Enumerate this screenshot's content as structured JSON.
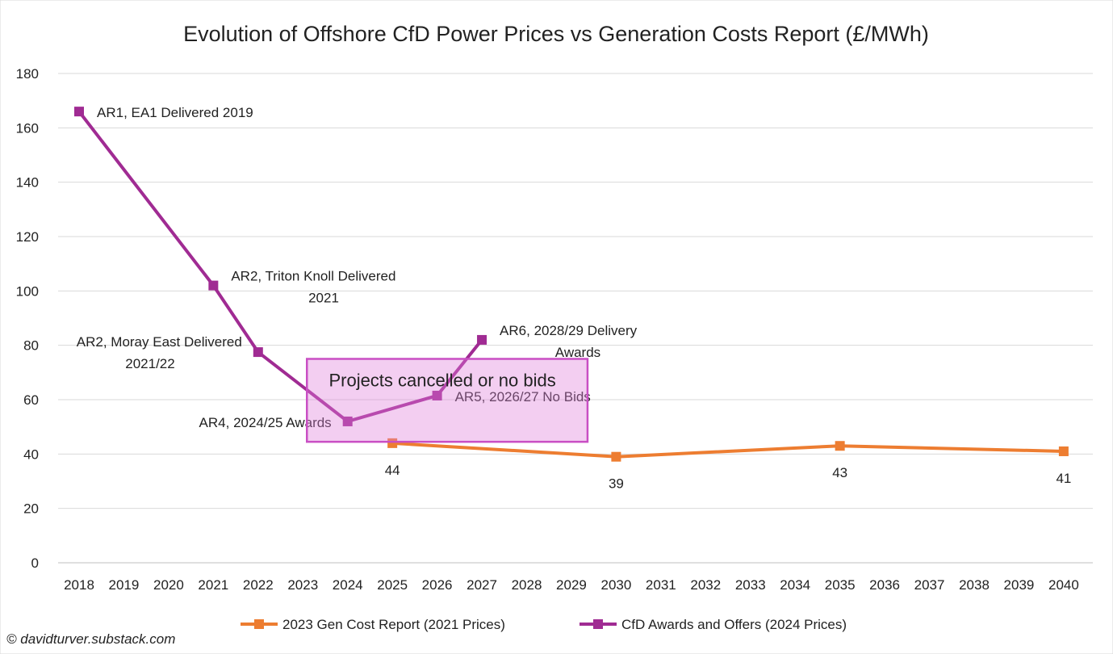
{
  "chart_data": {
    "type": "line",
    "title": "Evolution of Offshore CfD Power Prices vs Generation Costs Report (£/MWh)",
    "xlabel": "",
    "ylabel": "",
    "categories": [
      "2018",
      "2019",
      "2020",
      "2021",
      "2022",
      "2023",
      "2024",
      "2025",
      "2026",
      "2027",
      "2028",
      "2029",
      "2030",
      "2031",
      "2032",
      "2033",
      "2034",
      "2035",
      "2036",
      "2037",
      "2038",
      "2039",
      "2040"
    ],
    "ylim": [
      0,
      180
    ],
    "yticks": [
      0,
      20,
      40,
      60,
      80,
      100,
      120,
      140,
      160,
      180
    ],
    "grid": true,
    "legend_position": "bottom",
    "series": [
      {
        "name": "2023 Gen Cost Report (2021 Prices)",
        "color": "#ED7D31",
        "points": [
          {
            "x": "2025",
            "y": 44,
            "label": "44"
          },
          {
            "x": "2030",
            "y": 39,
            "label": "39"
          },
          {
            "x": "2035",
            "y": 43,
            "label": "43"
          },
          {
            "x": "2040",
            "y": 41,
            "label": "41"
          }
        ]
      },
      {
        "name": "CfD Awards and Offers (2024 Prices)",
        "color": "#A02B93",
        "points": [
          {
            "x": "2018",
            "y": 166,
            "label": [
              "AR1, EA1 Delivered 2019"
            ]
          },
          {
            "x": "2021",
            "y": 102,
            "label": [
              "AR2, Triton Knoll Delivered",
              "2021"
            ]
          },
          {
            "x": "2022",
            "y": 77.5,
            "label": [
              "AR2, Moray East Delivered",
              "2021/22"
            ]
          },
          {
            "x": "2024",
            "y": 52,
            "label": [
              "AR4, 2024/25 Awards"
            ]
          },
          {
            "x": "2026",
            "y": 61.5,
            "label": [
              "AR5, 2026/27 No Bids"
            ]
          },
          {
            "x": "2027",
            "y": 82,
            "label": [
              "AR6, 2028/29 Delivery",
              "Awards"
            ]
          }
        ]
      }
    ],
    "annotation_box": {
      "text": "Projects cancelled or no bids",
      "x_range": [
        "2023",
        "2029"
      ],
      "y_range": [
        44.5,
        75
      ],
      "fill": "#E07FD9",
      "stroke": "#C94FC4"
    }
  },
  "copyright": "© davidturver.substack.com"
}
